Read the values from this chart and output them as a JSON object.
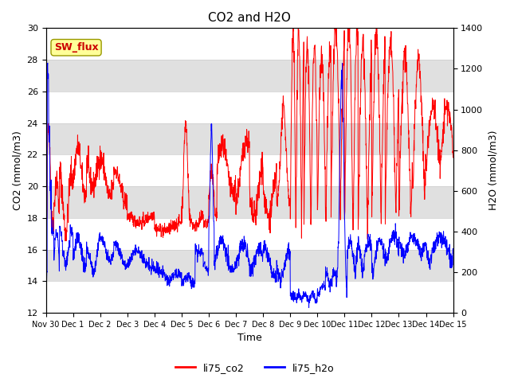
{
  "title": "CO2 and H2O",
  "xlabel": "Time",
  "ylabel_left": "CO2 (mmol/m3)",
  "ylabel_right": "H2O (mmol/m3)",
  "ylim_left": [
    12,
    30
  ],
  "ylim_right": [
    0,
    1400
  ],
  "yticks_left": [
    12,
    14,
    16,
    18,
    20,
    22,
    24,
    26,
    28,
    30
  ],
  "yticks_right": [
    0,
    200,
    400,
    600,
    800,
    1000,
    1200,
    1400
  ],
  "xtick_labels": [
    "Nov 30",
    "Dec 1",
    "Dec 2",
    "Dec 3",
    "Dec 4",
    "Dec 5",
    "Dec 6",
    "Dec 7",
    "Dec 8",
    "Dec 9",
    "Dec 10",
    "Dec 11",
    "Dec 12",
    "Dec 13",
    "Dec 14",
    "Dec 15"
  ],
  "legend_label_co2": "li75_co2",
  "legend_label_h2o": "li75_h2o",
  "color_co2": "#FF0000",
  "color_h2o": "#0000FF",
  "annotation_text": "SW_flux",
  "annotation_color": "#CC0000",
  "annotation_bg": "#FFFF99",
  "bg_band_color": "#E0E0E0",
  "title_fontsize": 11,
  "axis_label_fontsize": 9,
  "tick_fontsize": 8
}
